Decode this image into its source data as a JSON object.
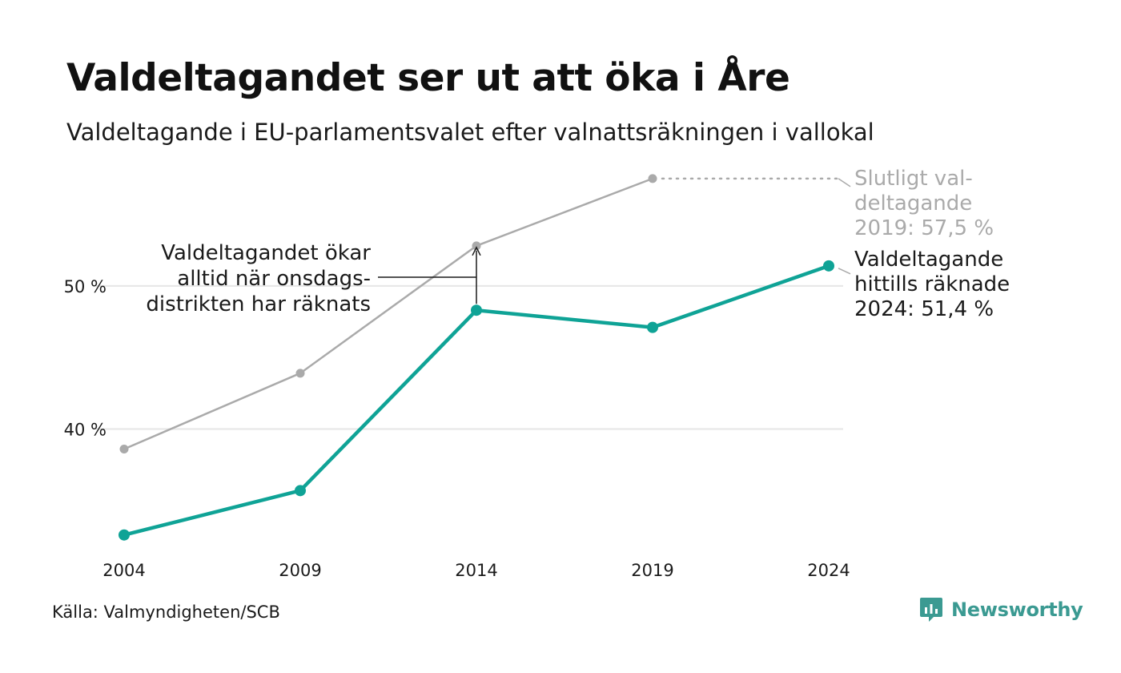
{
  "header": {
    "title": "Valdeltagandet ser ut att öka i Åre",
    "subtitle": "Valdeltagande i EU-parlamentsvalet efter valnattsräkningen i vallokal"
  },
  "footer": {
    "source": "Källa: Valmyndigheten/SCB",
    "brand": "Newsworthy"
  },
  "chart_data": {
    "type": "line",
    "x": [
      2004,
      2009,
      2014,
      2019,
      2024
    ],
    "y_ticks": [
      40,
      50
    ],
    "y_tick_labels": [
      "40 %",
      "50 %"
    ],
    "ylim": [
      31.8,
      58.5
    ],
    "grid": true,
    "series": [
      {
        "name": "Slutligt valdeltagande",
        "color": "#aaaaaa",
        "values": [
          38.6,
          43.9,
          52.8,
          57.5,
          null
        ],
        "dotted_extension_to_last_x": true
      },
      {
        "name": "Valdeltagande hittills räknade",
        "color": "#0fa396",
        "values": [
          32.6,
          35.7,
          48.3,
          47.1,
          51.4
        ]
      }
    ],
    "annotations": {
      "gray_end_label": [
        "Slutligt val-",
        "deltagande",
        "2019: 57,5 %"
      ],
      "teal_end_label": [
        "Valdeltagande",
        "hittills räknade",
        "2024: 51,4 %"
      ],
      "arrow_note": [
        "Valdeltagandet ökar",
        "alltid när onsdags-",
        "distrikten har räknats"
      ]
    }
  }
}
